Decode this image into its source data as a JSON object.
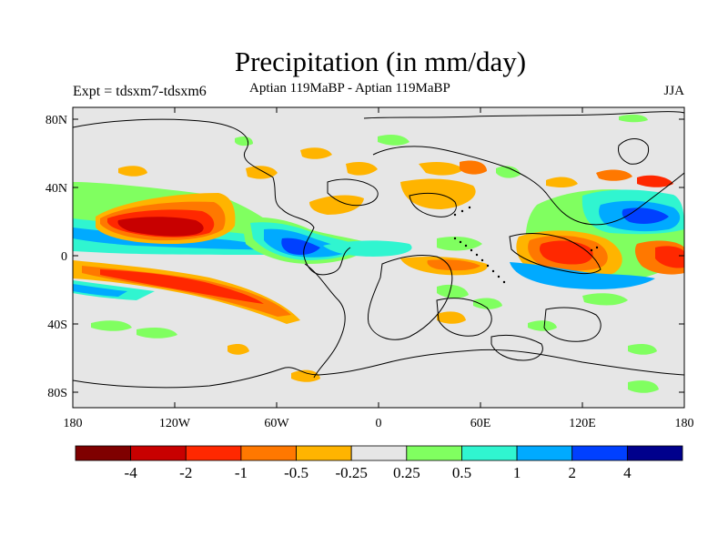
{
  "title": "Precipitation (in mm/day)",
  "subtitle": "Aptian  119MaBP - Aptian  119MaBP",
  "experiment": "Expt = tdsxm7-tdsxm6",
  "season": "JJA",
  "lat_labels": [
    "80N",
    "40N",
    "0",
    "40S",
    "80S"
  ],
  "lon_labels": [
    "180",
    "120W",
    "60W",
    "0",
    "60E",
    "120E",
    "180"
  ],
  "colorbar": {
    "colors": [
      "#7f0000",
      "#c80000",
      "#ff2800",
      "#ff7800",
      "#ffb400",
      "#e6e6e6",
      "#80ff60",
      "#30f5d0",
      "#00aaff",
      "#0040ff",
      "#00008c"
    ],
    "labels": [
      "-4",
      "-2",
      "-1",
      "-0.5",
      "-0.25",
      "0.25",
      "0.5",
      "1",
      "2",
      "4"
    ]
  },
  "background_color": "#e6e6e6"
}
